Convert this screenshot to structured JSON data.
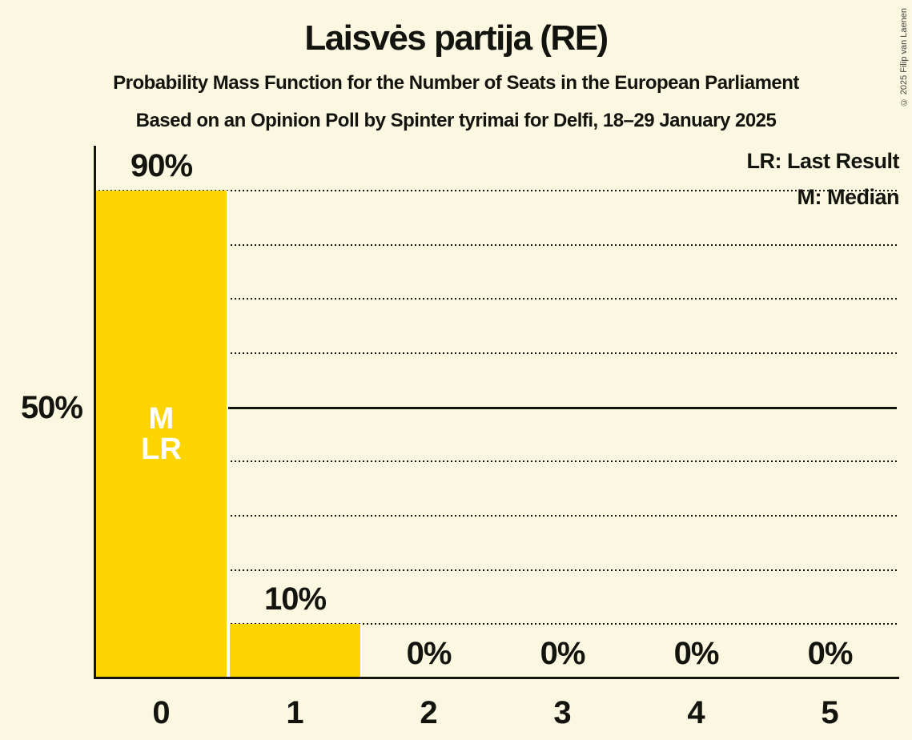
{
  "title": "Laisvės partija (RE)",
  "subtitle1": "Probability Mass Function for the Number of Seats in the European Parliament",
  "subtitle2": "Based on an Opinion Poll by Spinter tyrimai for Delfi, 18–29 January 2025",
  "legend": {
    "last_result": "LR: Last Result",
    "median": "M: Median"
  },
  "copyright": "© 2025 Filip van Laenen",
  "colors": {
    "background": "#FBF7E1",
    "bar": "#FCD400",
    "text": "#14140F",
    "bar_separator": "#FFFFFF",
    "bar_annotation_text": "#FFFFFF"
  },
  "chart_data": {
    "type": "bar",
    "title": "Laisvės partija (RE)",
    "xlabel": "",
    "ylabel": "",
    "categories": [
      "0",
      "1",
      "2",
      "3",
      "4",
      "5"
    ],
    "values": [
      90,
      10,
      0,
      0,
      0,
      0
    ],
    "value_labels": [
      "90%",
      "10%",
      "0%",
      "0%",
      "0%",
      "0%"
    ],
    "ylim": [
      0,
      98
    ],
    "gridline_percents": [
      10,
      20,
      30,
      40,
      50,
      60,
      70,
      80,
      90
    ],
    "solid_gridline_percent": 50,
    "mid_gridline_label": "50%",
    "grid_style": "dotted horizontal lines every 10%, solid line at 50%",
    "legend_position": "top-right",
    "annotations": [
      {
        "seat_index": 0,
        "lines": [
          "M",
          "LR"
        ],
        "meaning": "Median and Last Result at 0 seats"
      }
    ]
  }
}
